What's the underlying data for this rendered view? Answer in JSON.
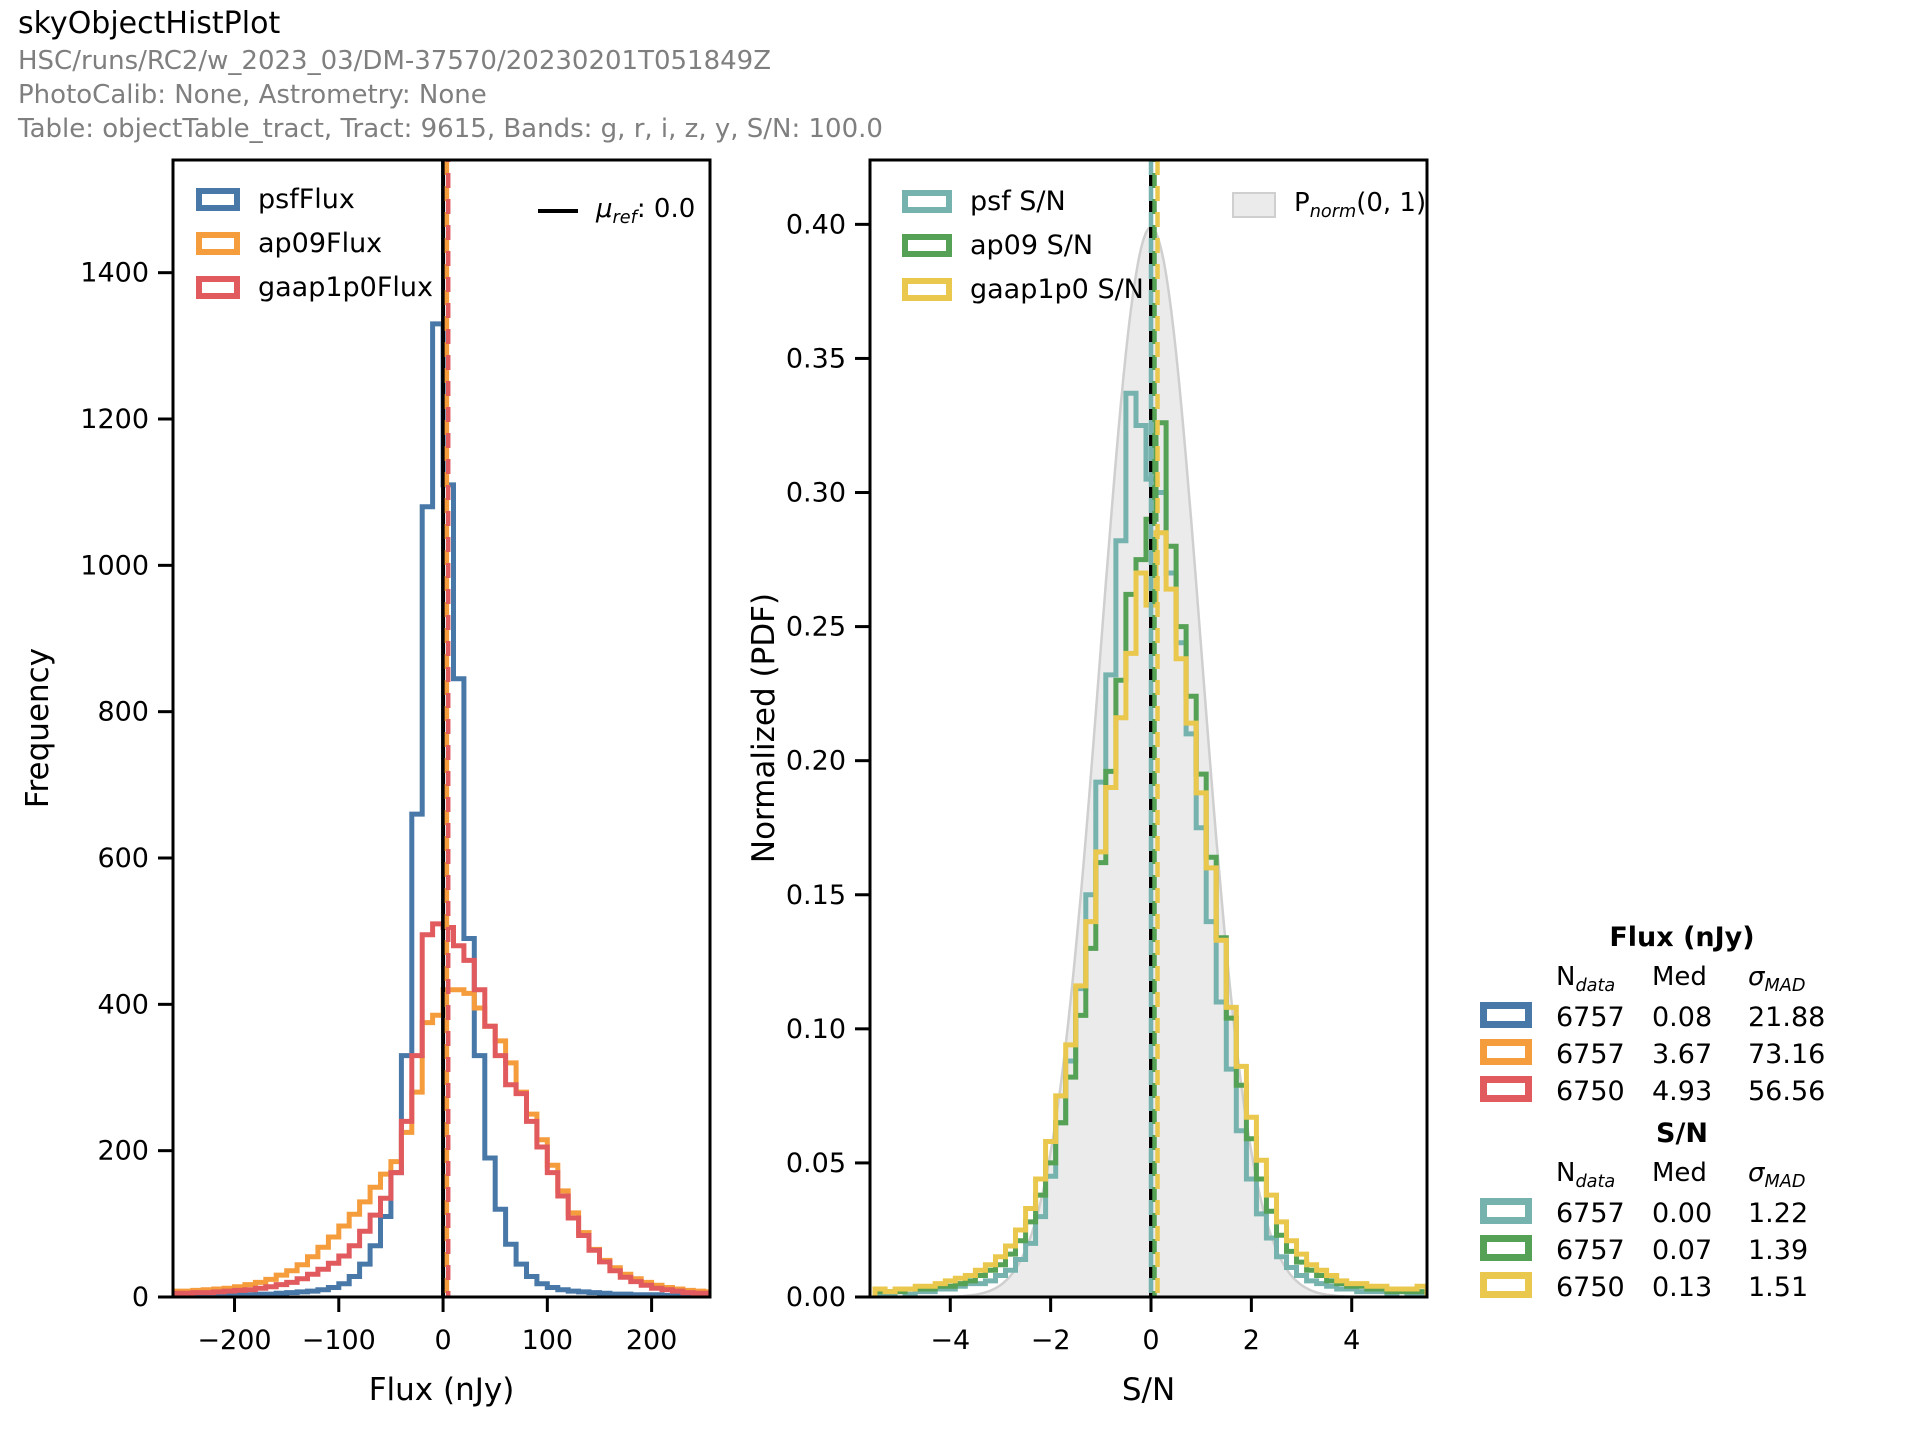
{
  "header": {
    "title": "skyObjectHistPlot",
    "run_line": "HSC/runs/RC2/w_2023_03/DM-37570/20230201T051849Z",
    "calib_line": "PhotoCalib: None, Astrometry: None",
    "table_line": "Table: objectTable_tract, Tract: 9615, Bands: g, r, i, z, y, S/N: 100.0"
  },
  "colors": {
    "blue": "#4878A8",
    "orange": "#F59C3C",
    "red": "#E15B5E",
    "teal": "#76B3AE",
    "green": "#55A155",
    "yellow": "#EAC84D",
    "black": "#000000",
    "normal_fill": "#EBEBEB",
    "normal_edge": "#CFCFCF",
    "subtitle_gray": "#7F7F7F"
  },
  "symbols": {
    "mu_ref": {
      "base": "μ",
      "sub": "ref",
      "rest": ": 0.0"
    },
    "p_norm": {
      "base": "P",
      "sub": "norm",
      "rest": "(0, 1)"
    },
    "n_data": {
      "base": "N",
      "sub": "data"
    },
    "med": "Med",
    "sigma_mad": {
      "base": "σ",
      "sub": "MAD"
    }
  },
  "chart_data": [
    {
      "type": "bar",
      "subtype": "step-histogram",
      "xlabel": "Flux (nJy)",
      "ylabel": "Frequency",
      "xlim": [
        -259,
        256
      ],
      "ylim": [
        0,
        1554
      ],
      "xticks": [
        -200,
        -100,
        0,
        100,
        200
      ],
      "yticks": [
        0,
        200,
        400,
        600,
        800,
        1000,
        1200,
        1400
      ],
      "xtick_decimals": 0,
      "ytick_decimals": 0,
      "bin_start": -260,
      "bin_width": 10,
      "series": [
        {
          "name": "psfFlux",
          "color_key": "blue",
          "values": [
            2,
            2,
            2,
            2,
            2,
            3,
            3,
            3,
            4,
            4,
            5,
            6,
            7,
            8,
            10,
            13,
            18,
            28,
            45,
            70,
            110,
            170,
            330,
            660,
            1080,
            1330,
            1110,
            845,
            490,
            330,
            190,
            120,
            72,
            45,
            28,
            18,
            13,
            10,
            8,
            7,
            6,
            5,
            4,
            4,
            3,
            3,
            3,
            2,
            2,
            2,
            2,
            2
          ]
        },
        {
          "name": "ap09Flux",
          "color_key": "orange",
          "values": [
            8,
            8,
            9,
            10,
            11,
            12,
            14,
            17,
            20,
            24,
            30,
            36,
            44,
            55,
            68,
            82,
            97,
            113,
            130,
            150,
            168,
            185,
            225,
            280,
            375,
            385,
            420,
            420,
            415,
            395,
            370,
            350,
            320,
            280,
            250,
            215,
            180,
            145,
            115,
            88,
            65,
            50,
            40,
            31,
            25,
            20,
            16,
            13,
            11,
            9,
            8,
            7
          ]
        },
        {
          "name": "gaap1p0Flux",
          "color_key": "red",
          "values": [
            5,
            5,
            6,
            6,
            7,
            8,
            9,
            10,
            12,
            14,
            17,
            20,
            25,
            31,
            38,
            46,
            56,
            70,
            90,
            112,
            135,
            170,
            240,
            330,
            495,
            510,
            505,
            480,
            460,
            420,
            370,
            330,
            290,
            278,
            240,
            205,
            170,
            138,
            108,
            84,
            64,
            48,
            36,
            27,
            21,
            16,
            12,
            10,
            8,
            6,
            5,
            5
          ]
        }
      ],
      "vlines": [
        {
          "x": 0,
          "color_key": "black",
          "style": "solid",
          "label": "μref: 0.0"
        },
        {
          "x": 3.67,
          "color_key": "orange",
          "style": "dashed"
        },
        {
          "x": 4.93,
          "color_key": "red",
          "style": "dashed"
        }
      ]
    },
    {
      "type": "bar",
      "subtype": "step-histogram-pdf",
      "xlabel": "S/N",
      "ylabel": "Normalized (PDF)",
      "xlim": [
        -5.6,
        5.5
      ],
      "ylim": [
        0,
        0.424
      ],
      "xticks": [
        -4,
        -2,
        0,
        2,
        4
      ],
      "yticks": [
        0,
        0.05,
        0.1,
        0.15,
        0.2,
        0.25,
        0.3,
        0.35,
        0.4
      ],
      "xtick_decimals": 0,
      "ytick_decimals": 2,
      "bin_start": -5.5,
      "bin_width": 0.2,
      "series": [
        {
          "name": "psf S/N",
          "color_key": "teal",
          "values": [
            0.001,
            0.001,
            0.002,
            0.001,
            0.002,
            0.002,
            0.003,
            0.003,
            0.004,
            0.005,
            0.005,
            0.006,
            0.008,
            0.01,
            0.014,
            0.02,
            0.03,
            0.045,
            0.065,
            0.088,
            0.115,
            0.15,
            0.192,
            0.232,
            0.282,
            0.337,
            0.325,
            0.305,
            0.3,
            0.27,
            0.244,
            0.21,
            0.175,
            0.14,
            0.11,
            0.085,
            0.062,
            0.044,
            0.031,
            0.022,
            0.015,
            0.011,
            0.008,
            0.006,
            0.005,
            0.004,
            0.003,
            0.003,
            0.002,
            0.002,
            0.002,
            0.001,
            0.002,
            0.001,
            0.001
          ]
        },
        {
          "name": "ap09 S/N",
          "color_key": "green",
          "values": [
            0.002,
            0.002,
            0.002,
            0.003,
            0.003,
            0.003,
            0.004,
            0.004,
            0.005,
            0.006,
            0.008,
            0.01,
            0.012,
            0.016,
            0.021,
            0.028,
            0.038,
            0.05,
            0.065,
            0.082,
            0.105,
            0.13,
            0.162,
            0.196,
            0.23,
            0.262,
            0.275,
            0.29,
            0.326,
            0.28,
            0.25,
            0.224,
            0.195,
            0.164,
            0.134,
            0.104,
            0.079,
            0.059,
            0.044,
            0.032,
            0.023,
            0.017,
            0.013,
            0.01,
            0.008,
            0.006,
            0.005,
            0.004,
            0.004,
            0.003,
            0.003,
            0.002,
            0.002,
            0.002,
            0.002
          ]
        },
        {
          "name": "gaap1p0 S/N",
          "color_key": "yellow",
          "values": [
            0.003,
            0.002,
            0.003,
            0.003,
            0.004,
            0.004,
            0.005,
            0.006,
            0.007,
            0.008,
            0.01,
            0.012,
            0.015,
            0.019,
            0.025,
            0.033,
            0.044,
            0.058,
            0.075,
            0.094,
            0.116,
            0.14,
            0.166,
            0.19,
            0.216,
            0.24,
            0.27,
            0.258,
            0.285,
            0.264,
            0.238,
            0.214,
            0.188,
            0.16,
            0.133,
            0.108,
            0.086,
            0.067,
            0.051,
            0.038,
            0.028,
            0.021,
            0.016,
            0.012,
            0.01,
            0.008,
            0.006,
            0.005,
            0.005,
            0.004,
            0.004,
            0.003,
            0.003,
            0.003,
            0.004
          ]
        }
      ],
      "normal_curve": {
        "label": "Pnorm(0, 1)",
        "mu": 0,
        "sigma": 1,
        "amplitude": 0.3989
      },
      "vlines": [
        {
          "x": 0,
          "color_key": "black",
          "style": "solid"
        },
        {
          "x": 0.0,
          "color_key": "teal",
          "style": "dashed"
        },
        {
          "x": 0.07,
          "color_key": "green",
          "style": "dashed"
        },
        {
          "x": 0.13,
          "color_key": "yellow",
          "style": "dashed"
        }
      ]
    }
  ],
  "stats": {
    "flux": {
      "title": "Flux (nJy)",
      "rows": [
        {
          "series": "psfFlux",
          "color_key": "blue",
          "n": "6757",
          "med": "0.08",
          "sigma": "21.88"
        },
        {
          "series": "ap09Flux",
          "color_key": "orange",
          "n": "6757",
          "med": "3.67",
          "sigma": "73.16"
        },
        {
          "series": "gaap1p0Flux",
          "color_key": "red",
          "n": "6750",
          "med": "4.93",
          "sigma": "56.56"
        }
      ]
    },
    "sn": {
      "title": "S/N",
      "rows": [
        {
          "series": "psf S/N",
          "color_key": "teal",
          "n": "6757",
          "med": "0.00",
          "sigma": "1.22"
        },
        {
          "series": "ap09 S/N",
          "color_key": "green",
          "n": "6757",
          "med": "0.07",
          "sigma": "1.39"
        },
        {
          "series": "gaap1p0 S/N",
          "color_key": "yellow",
          "n": "6750",
          "med": "0.13",
          "sigma": "1.51"
        }
      ]
    }
  }
}
